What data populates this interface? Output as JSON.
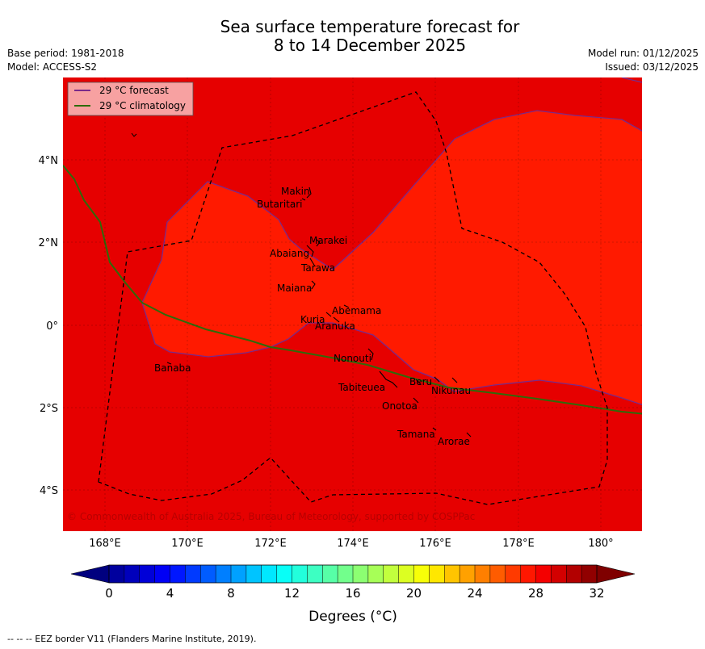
{
  "header": {
    "title_line1": "Sea surface temperature forecast for",
    "title_line2": "8 to 14 December 2025",
    "base_period": "Base period: 1981-2018",
    "model": "Model: ACCESS-S2",
    "model_run": "Model run: 01/12/2025",
    "issued": "Issued: 03/12/2025"
  },
  "map": {
    "lon_ticks": [
      "168°E",
      "170°E",
      "172°E",
      "174°E",
      "176°E",
      "178°E",
      "180°"
    ],
    "lat_ticks": [
      "4°N",
      "2°N",
      "0°",
      "2°S",
      "4°S"
    ],
    "legend": [
      {
        "label": "29 °C  forecast",
        "color": "#7a2a8a"
      },
      {
        "label": "29 °C  climatology",
        "color": "#2e6b0a"
      }
    ],
    "copyright": "© Commonwealth of Australia 2025, Bureau of Meteorology, supported by COSPPac",
    "places": [
      "Makin",
      "Butaritari",
      "Marakei",
      "Abaiang",
      "Tarawa",
      "Maiana",
      "Abemama",
      "Kuria",
      "Aranuka",
      "Banaba",
      "Nonouti",
      "Tabiteuea",
      "Beru",
      "Nikunau",
      "Onotoa",
      "Tamana",
      "Arorae"
    ],
    "colors": {
      "warm_fill": "#ff1a00",
      "hot_fill": "#e60000",
      "eez_border": "#000000"
    }
  },
  "colorbar": {
    "ticks": [
      "0",
      "4",
      "8",
      "12",
      "16",
      "20",
      "24",
      "28",
      "32"
    ],
    "label": "Degrees (°C)",
    "min": 0,
    "max": 32,
    "step": 1,
    "under_color": "#00007f",
    "over_color": "#7f0000"
  },
  "footer": {
    "note": "--  --  -- EEZ border V11 (Flanders Marine Institute, 2019)."
  }
}
